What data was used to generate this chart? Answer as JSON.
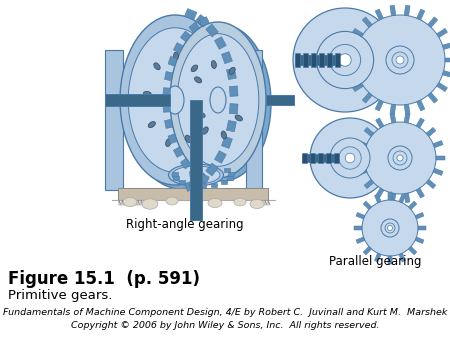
{
  "figure_label": "Figure 15.1  (p. 591)",
  "figure_caption": "Primitive gears.",
  "label_right_angle": "Right-angle gearing",
  "label_parallel": "Parallel gearing",
  "copyright_line1": "Fundamentals of Machine Component Design, 4/E by Robert C.  Juvinall and Kurt M.  Marshek",
  "copyright_line2": "Copyright © 2006 by John Wiley & Sons, Inc.  All rights reserved.",
  "background_color": "#ffffff",
  "text_color": "#000000",
  "gear_face_light": "#c5d8ec",
  "gear_face_mid": "#a8c4de",
  "gear_face_dark": "#7aa8cc",
  "gear_edge": "#4a7aaa",
  "gear_tooth": "#6090b8",
  "shaft_color": "#3a6888",
  "shaft_dark": "#2a5070",
  "label_fontsize": 8.5,
  "caption_fontsize": 9.5,
  "figure_label_fontsize": 12,
  "copyright_fontsize": 6.8
}
